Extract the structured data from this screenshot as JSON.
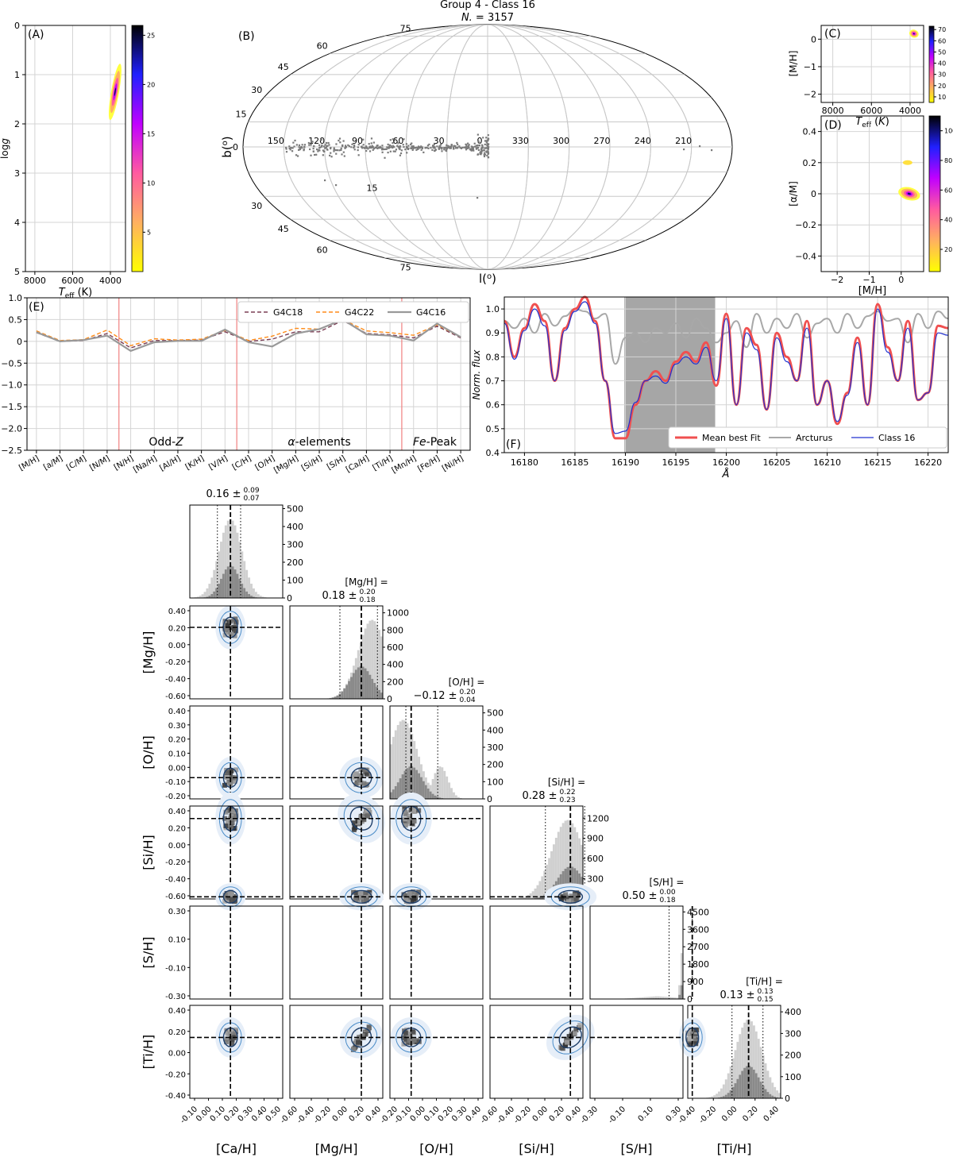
{
  "figure": {
    "title": "Group 4 - Class 16",
    "subtitle": "N. = 3157",
    "subtitle_italic_part": "N.",
    "subtitle_value": " = 3157"
  },
  "chart_data": [
    {
      "id": "A",
      "type": "heatmap",
      "panel_label": "(A)",
      "xlabel": "T_eff (K)",
      "ylabel": "logg",
      "xlim": [
        8500,
        3200
      ],
      "ylim": [
        5,
        0
      ],
      "xticks": [
        8000,
        6000,
        4000
      ],
      "yticks": [
        0,
        1,
        2,
        3,
        4,
        5
      ],
      "colorbar": {
        "ticks": [
          5,
          10,
          15,
          20,
          25
        ],
        "range": [
          1,
          26
        ]
      },
      "cluster": {
        "teff_center": 3750,
        "logg_center": 1.35,
        "logg_span": [
          0.8,
          1.8
        ]
      }
    },
    {
      "id": "B",
      "type": "scatter",
      "panel_label": "(B)",
      "projection": "mollweide",
      "xlabel": "l(°)",
      "ylabel": "b(°)",
      "lon_labels": [
        "150",
        "120",
        "90",
        "60",
        "30",
        "0",
        "330",
        "300",
        "270",
        "240",
        "210"
      ],
      "lat_labels_north": [
        "75",
        "60",
        "45",
        "30",
        "15"
      ],
      "lat_labels_south": [
        "75",
        "60",
        "45",
        "30",
        "15"
      ],
      "lat_zero_label": "0",
      "note": "stars concentrated along the Galactic plane between l=150° and l=0°"
    },
    {
      "id": "C",
      "type": "heatmap",
      "panel_label": "(C)",
      "xlabel": "T_eff (K)",
      "ylabel": "[M/H]",
      "xlim": [
        8600,
        3300
      ],
      "ylim": [
        -2.3,
        0.5
      ],
      "xticks": [
        8000,
        6000,
        4000
      ],
      "yticks": [
        0,
        -1,
        -2
      ],
      "colorbar": {
        "ticks": [
          10,
          20,
          30,
          40,
          50,
          60,
          70
        ],
        "range": [
          5,
          73
        ]
      },
      "cluster": {
        "teff_center": 3800,
        "mh_center": 0.2
      }
    },
    {
      "id": "D",
      "type": "heatmap",
      "panel_label": "(D)",
      "xlabel": "[M/H]",
      "ylabel": "[α/M]",
      "xlim": [
        -2.5,
        0.7
      ],
      "ylim": [
        -0.5,
        0.5
      ],
      "xticks": [
        -2,
        -1,
        0
      ],
      "yticks": [
        0.4,
        0.2,
        0.0,
        -0.2,
        -0.4
      ],
      "colorbar": {
        "ticks": [
          20,
          40,
          60,
          80,
          100
        ],
        "range": [
          5,
          110
        ]
      },
      "clusters": [
        {
          "mh": 0.25,
          "am": 0.0
        },
        {
          "mh": 0.2,
          "am": 0.2
        }
      ]
    },
    {
      "id": "E",
      "type": "line",
      "panel_label": "(E)",
      "categories": [
        "[M/H]",
        "[a/M]",
        "[C/M]",
        "[N/M]",
        "[N/H]",
        "[Na/H]",
        "[Al/H]",
        "[K/H]",
        "[V/H]",
        "[C/H]",
        "[O/H]",
        "[Mg/H]",
        "[Si/H]",
        "[S/H]",
        "[Ca/H]",
        "[Ti/H]",
        "[Mn/H]",
        "[Fe/H]",
        "[Ni/H]"
      ],
      "ylim": [
        -2.5,
        1.0
      ],
      "yticks": [
        1.0,
        0.5,
        0.0,
        -0.5,
        -1.0,
        -1.5,
        -2.0,
        -2.5
      ],
      "series": [
        {
          "name": "G4C18",
          "color": "#7b3f55",
          "dash": "5,3",
          "values": [
            0.2,
            0.0,
            0.02,
            0.18,
            -0.15,
            0.02,
            0.02,
            0.03,
            0.22,
            0.0,
            0.05,
            0.22,
            0.22,
            0.48,
            0.18,
            0.15,
            0.08,
            0.35,
            0.08
          ]
        },
        {
          "name": "G4C22",
          "color": "#ff8c1a",
          "dash": "5,3",
          "values": [
            0.24,
            0.02,
            0.04,
            0.26,
            -0.1,
            0.06,
            0.03,
            0.05,
            0.25,
            0.02,
            0.12,
            0.3,
            0.28,
            0.5,
            0.24,
            0.2,
            0.14,
            0.38,
            0.1
          ]
        },
        {
          "name": "G4C16",
          "color": "#999999",
          "dash": "",
          "values": [
            0.21,
            0.0,
            0.03,
            0.13,
            -0.22,
            -0.02,
            0.01,
            0.01,
            0.27,
            -0.02,
            -0.12,
            0.18,
            0.28,
            0.5,
            0.16,
            0.13,
            0.02,
            0.41,
            0.1
          ]
        }
      ],
      "group_labels": [
        "Odd-Z",
        "α-elements",
        "Fe-Peak"
      ],
      "group_label_prefix": [
        "Odd-",
        "α",
        "Fe"
      ],
      "group_label_suffix": [
        "Z",
        "-elements",
        "-Peak"
      ],
      "separators_after_index": [
        3,
        8,
        15
      ]
    },
    {
      "id": "F",
      "type": "line",
      "panel_label": "(F)",
      "xlabel": "Å",
      "ylabel": "Norm. flux",
      "xlim": [
        16178,
        16222
      ],
      "ylim": [
        0.4,
        1.05
      ],
      "xticks": [
        16180,
        16185,
        16190,
        16195,
        16200,
        16205,
        16210,
        16215,
        16220
      ],
      "yticks": [
        0.4,
        0.5,
        0.6,
        0.7,
        0.8,
        0.9,
        1.0
      ],
      "shaded_region": [
        16189.9,
        16198.9
      ],
      "x": [
        16178,
        16179,
        16180,
        16181,
        16182,
        16183,
        16184,
        16185,
        16186,
        16187,
        16188,
        16189,
        16190,
        16191,
        16192,
        16193,
        16194,
        16195,
        16196,
        16197,
        16198,
        16199,
        16200,
        16201,
        16202,
        16203,
        16204,
        16205,
        16206,
        16207,
        16208,
        16209,
        16210,
        16211,
        16212,
        16213,
        16214,
        16215,
        16216,
        16217,
        16218,
        16219,
        16220,
        16221,
        16222
      ],
      "series": [
        {
          "name": "Mean best Fit",
          "color": "#f05050",
          "width": 3,
          "values": [
            0.95,
            0.8,
            0.92,
            1.02,
            0.95,
            0.7,
            0.92,
            1.0,
            1.05,
            0.95,
            0.7,
            0.46,
            0.46,
            0.6,
            0.7,
            0.74,
            0.7,
            0.78,
            0.82,
            0.78,
            0.86,
            0.68,
            0.98,
            0.6,
            0.92,
            0.85,
            0.58,
            0.9,
            0.8,
            0.7,
            0.95,
            0.6,
            0.7,
            0.52,
            0.65,
            0.88,
            0.6,
            1.02,
            0.84,
            0.7,
            0.95,
            0.62,
            0.65,
            0.93,
            0.92
          ]
        },
        {
          "name": "Arcturus",
          "color": "#a8a8a8",
          "width": 2,
          "values": [
            0.95,
            0.92,
            0.96,
            0.9,
            0.98,
            0.93,
            0.97,
            1.0,
            0.99,
            0.96,
            0.98,
            0.77,
            0.88,
            0.9,
            0.86,
            0.92,
            0.9,
            0.94,
            0.88,
            0.96,
            0.92,
            0.86,
            0.9,
            0.95,
            0.84,
            0.98,
            0.9,
            0.96,
            0.92,
            0.98,
            0.88,
            0.94,
            0.96,
            0.9,
            0.98,
            0.92,
            0.97,
            0.99,
            0.95,
            0.96,
            0.86,
            0.98,
            0.92,
            0.99,
            0.96
          ]
        },
        {
          "name": "Class 16",
          "color": "#2030d0",
          "width": 1.2,
          "values": [
            0.94,
            0.79,
            0.91,
            1.0,
            0.93,
            0.7,
            0.91,
            0.99,
            1.03,
            0.94,
            0.7,
            0.48,
            0.49,
            0.61,
            0.7,
            0.72,
            0.69,
            0.77,
            0.8,
            0.77,
            0.84,
            0.7,
            0.96,
            0.6,
            0.9,
            0.83,
            0.58,
            0.88,
            0.78,
            0.7,
            0.92,
            0.6,
            0.7,
            0.53,
            0.64,
            0.86,
            0.6,
            1.0,
            0.82,
            0.7,
            0.92,
            0.62,
            0.65,
            0.9,
            0.89
          ]
        }
      ]
    },
    {
      "id": "corner",
      "type": "scatter",
      "params": [
        "[Ca/H]",
        "[Mg/H]",
        "[O/H]",
        "[Si/H]",
        "[S/H]",
        "[Ti/H]"
      ],
      "row_labels": [
        "[Mg/H]",
        "[O/H]",
        "[Si/H]",
        "[S/H]",
        "[Ti/H]"
      ],
      "limits": [
        [
          -0.12,
          0.52
        ],
        [
          -0.62,
          0.42
        ],
        [
          -0.28,
          0.42
        ],
        [
          -0.62,
          0.42
        ],
        [
          -0.38,
          0.42
        ],
        [
          -0.42,
          0.42
        ]
      ],
      "medians": [
        0.16,
        0.18,
        -0.12,
        0.28,
        0.5,
        0.13
      ],
      "err_plus": [
        0.09,
        0.2,
        0.2,
        0.22,
        0.0,
        0.13
      ],
      "err_minus": [
        0.07,
        0.18,
        0.04,
        0.23,
        0.18,
        0.15
      ],
      "quantile_lo": [
        0.07,
        -0.06,
        -0.16,
        0.0,
        0.3,
        -0.02
      ],
      "quantile_hi": [
        0.23,
        0.36,
        0.08,
        0.44,
        0.5,
        0.26
      ],
      "titles": [
        {
          "prefix": "",
          "value": "0.16 ±",
          "sup": "0.09",
          "sub": "0.07"
        },
        {
          "prefix": "[Mg/H] =",
          "value": "0.18 ±",
          "sup": "0.20",
          "sub": "0.18"
        },
        {
          "prefix": "[O/H] =",
          "value": "−0.12 ±",
          "sup": "0.20",
          "sub": "0.04"
        },
        {
          "prefix": "[Si/H] =",
          "value": "0.28 ±",
          "sup": "0.22",
          "sub": "0.23"
        },
        {
          "prefix": "[S/H] =",
          "value": "0.50 ±",
          "sup": "0.00",
          "sub": "0.18"
        },
        {
          "prefix": "[Ti/H] =",
          "value": "0.13 ±",
          "sup": "0.13",
          "sub": "0.15"
        }
      ],
      "hist_yticks": [
        [
          0,
          100,
          200,
          300,
          400,
          500
        ],
        [
          0,
          200,
          400,
          600,
          800,
          1000
        ],
        [
          0,
          100,
          200,
          300,
          400,
          500
        ],
        [
          0,
          300,
          600,
          900,
          1200
        ],
        [
          0,
          900,
          1800,
          2700,
          3600,
          4500
        ],
        [
          0,
          100,
          200,
          300,
          400
        ]
      ],
      "hist_ymax": [
        520,
        1080,
        540,
        1380,
        4800,
        430
      ],
      "x_ticklabels": [
        [
          "-0.10",
          "0.00",
          "0.10",
          "0.20",
          "0.30",
          "0.40",
          "0.50"
        ],
        [
          "-0.60",
          "-0.40",
          "-0.20",
          "0.00",
          "0.20",
          "0.40"
        ],
        [
          "-0.20",
          "-0.10",
          "0.00",
          "0.10",
          "0.20",
          "0.30",
          "0.40"
        ],
        [
          "-0.60",
          "-0.40",
          "-0.20",
          "0.00",
          "0.20",
          "0.40"
        ],
        [
          "-0.30",
          "-0.10",
          "0.10",
          "0.30"
        ],
        [
          "-0.40",
          "-0.20",
          "0.00",
          "0.20",
          "0.40"
        ]
      ],
      "y_ticklabels": [
        [
          "0.40",
          "0.20",
          "0.00",
          "-0.20",
          "-0.40",
          "-0.60"
        ],
        [
          "0.40",
          "0.30",
          "0.20",
          "0.10",
          "0.00",
          "-0.10",
          "-0.20"
        ],
        [
          "0.40",
          "0.20",
          "0.00",
          "-0.20",
          "-0.40",
          "-0.60"
        ],
        [
          "0.30",
          "0.10",
          "-0.10",
          "-0.30"
        ],
        [
          "0.40",
          "0.20",
          "0.00",
          "-0.20",
          "-0.40"
        ]
      ]
    }
  ]
}
